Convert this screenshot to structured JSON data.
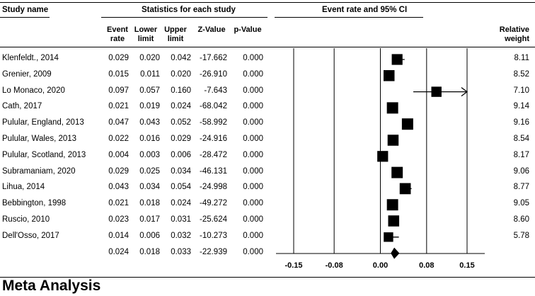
{
  "headers": {
    "study_name": "Study name",
    "stats_group": "Statistics for each study",
    "plot_title": "Event rate and 95% CI",
    "columns": [
      {
        "l1": "Event",
        "l2": "rate"
      },
      {
        "l1": "Lower",
        "l2": "limit"
      },
      {
        "l1": "Upper",
        "l2": "limit"
      },
      {
        "l1": "Z-Value",
        "l2": ""
      },
      {
        "l1": "p-Value",
        "l2": ""
      }
    ],
    "relative_weight": {
      "l1": "Relative",
      "l2": "weight"
    }
  },
  "studies": [
    {
      "name": "Klenfeldt., 2014",
      "rate": "0.029",
      "lower": "0.020",
      "upper": "0.042",
      "z": "-17.662",
      "p": "0.000",
      "weight": "8.11"
    },
    {
      "name": "Grenier, 2009",
      "rate": "0.015",
      "lower": "0.011",
      "upper": "0.020",
      "z": "-26.910",
      "p": "0.000",
      "weight": "8.52"
    },
    {
      "name": "Lo Monaco, 2020",
      "rate": "0.097",
      "lower": "0.057",
      "upper": "0.160",
      "z": "-7.643",
      "p": "0.000",
      "weight": "7.10"
    },
    {
      "name": "Cath, 2017",
      "rate": "0.021",
      "lower": "0.019",
      "upper": "0.024",
      "z": "-68.042",
      "p": "0.000",
      "weight": "9.14"
    },
    {
      "name": "Pulular, England, 2013",
      "rate": "0.047",
      "lower": "0.043",
      "upper": "0.052",
      "z": "-58.992",
      "p": "0.000",
      "weight": "9.16"
    },
    {
      "name": "Pulular, Wales, 2013",
      "rate": "0.022",
      "lower": "0.016",
      "upper": "0.029",
      "z": "-24.916",
      "p": "0.000",
      "weight": "8.54"
    },
    {
      "name": "Pulular, Scotland, 2013",
      "rate": "0.004",
      "lower": "0.003",
      "upper": "0.006",
      "z": "-28.472",
      "p": "0.000",
      "weight": "8.17"
    },
    {
      "name": "Subramaniam, 2020",
      "rate": "0.029",
      "lower": "0.025",
      "upper": "0.034",
      "z": "-46.131",
      "p": "0.000",
      "weight": "9.06"
    },
    {
      "name": "Lihua, 2014",
      "rate": "0.043",
      "lower": "0.034",
      "upper": "0.054",
      "z": "-24.998",
      "p": "0.000",
      "weight": "8.77"
    },
    {
      "name": "Bebbington, 1998",
      "rate": "0.021",
      "lower": "0.018",
      "upper": "0.024",
      "z": "-49.272",
      "p": "0.000",
      "weight": "9.05"
    },
    {
      "name": "Ruscio, 2010",
      "rate": "0.023",
      "lower": "0.017",
      "upper": "0.031",
      "z": "-25.624",
      "p": "0.000",
      "weight": "8.60"
    },
    {
      "name": "Dell'Osso, 2017",
      "rate": "0.014",
      "lower": "0.006",
      "upper": "0.032",
      "z": "-10.273",
      "p": "0.000",
      "weight": "5.78"
    }
  ],
  "pooled": {
    "rate": "0.024",
    "lower": "0.018",
    "upper": "0.033",
    "z": "-22.939",
    "p": "0.000"
  },
  "footer_title": "Meta Analysis",
  "chart_data": {
    "type": "forest",
    "title": "Event rate and 95% CI",
    "x_ticks": [
      -0.15,
      -0.08,
      0.0,
      0.08,
      0.15
    ],
    "x_tick_labels": [
      "-0.15",
      "-0.08",
      "0.00",
      "0.08",
      "0.15"
    ],
    "xlim": [
      -0.15,
      0.15
    ],
    "series": [
      {
        "name": "Klenfeldt., 2014",
        "rate": 0.029,
        "lower": 0.02,
        "upper": 0.042,
        "weight": 8.11
      },
      {
        "name": "Grenier, 2009",
        "rate": 0.015,
        "lower": 0.011,
        "upper": 0.02,
        "weight": 8.52
      },
      {
        "name": "Lo Monaco, 2020",
        "rate": 0.097,
        "lower": 0.057,
        "upper": 0.16,
        "weight": 7.1
      },
      {
        "name": "Cath, 2017",
        "rate": 0.021,
        "lower": 0.019,
        "upper": 0.024,
        "weight": 9.14
      },
      {
        "name": "Pulular, England, 2013",
        "rate": 0.047,
        "lower": 0.043,
        "upper": 0.052,
        "weight": 9.16
      },
      {
        "name": "Pulular, Wales, 2013",
        "rate": 0.022,
        "lower": 0.016,
        "upper": 0.029,
        "weight": 8.54
      },
      {
        "name": "Pulular, Scotland, 2013",
        "rate": 0.004,
        "lower": 0.003,
        "upper": 0.006,
        "weight": 8.17
      },
      {
        "name": "Subramaniam, 2020",
        "rate": 0.029,
        "lower": 0.025,
        "upper": 0.034,
        "weight": 9.06
      },
      {
        "name": "Lihua, 2014",
        "rate": 0.043,
        "lower": 0.034,
        "upper": 0.054,
        "weight": 8.77
      },
      {
        "name": "Bebbington, 1998",
        "rate": 0.021,
        "lower": 0.018,
        "upper": 0.024,
        "weight": 9.05
      },
      {
        "name": "Ruscio, 2010",
        "rate": 0.023,
        "lower": 0.017,
        "upper": 0.031,
        "weight": 8.6
      },
      {
        "name": "Dell'Osso, 2017",
        "rate": 0.014,
        "lower": 0.006,
        "upper": 0.032,
        "weight": 5.78
      }
    ],
    "summary": {
      "rate": 0.024,
      "lower": 0.018,
      "upper": 0.033
    }
  }
}
